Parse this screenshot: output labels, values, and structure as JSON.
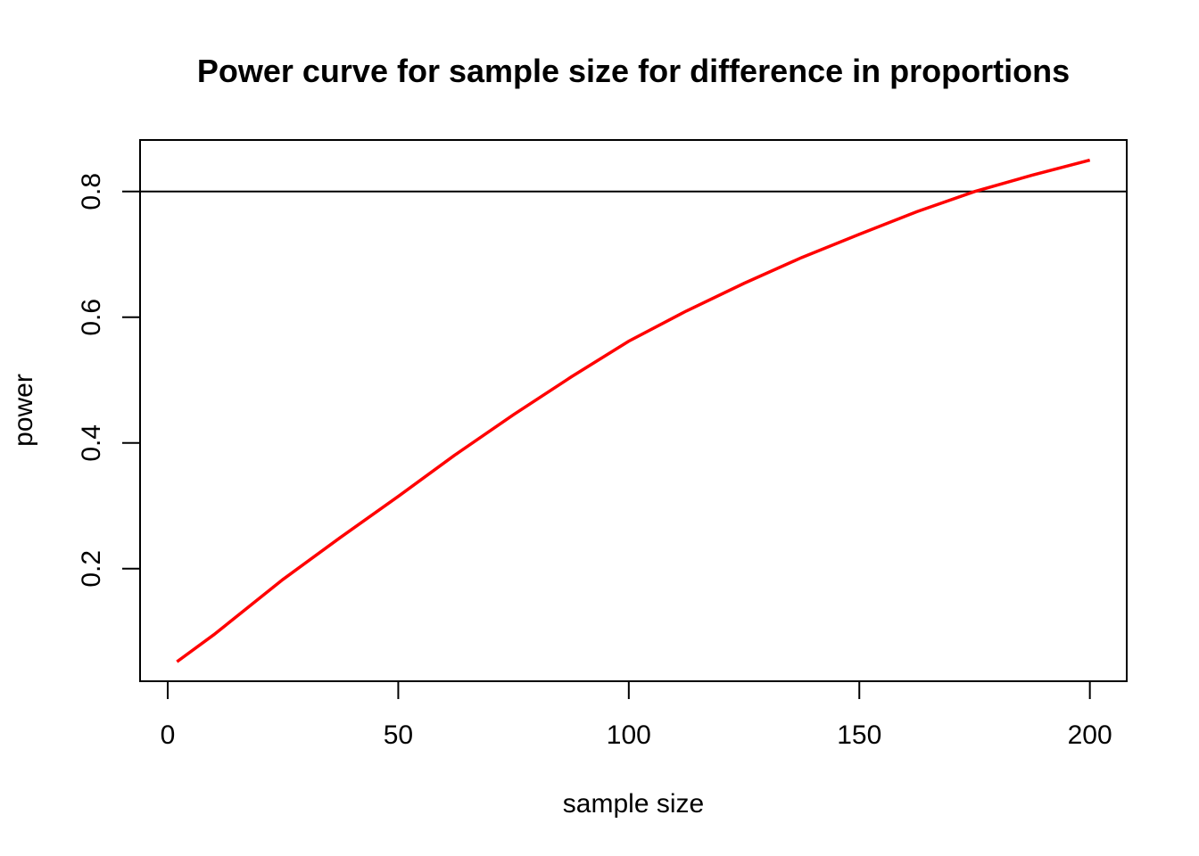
{
  "chart_data": {
    "type": "line",
    "title": "Power curve for sample size for difference in proportions",
    "xlabel": "sample size",
    "ylabel": "power",
    "xlim": [
      -6,
      208
    ],
    "ylim": [
      0.021,
      0.882
    ],
    "xticks": [
      0,
      50,
      100,
      150,
      200
    ],
    "xtick_labels": [
      "0",
      "50",
      "100",
      "150",
      "200"
    ],
    "yticks": [
      0.2,
      0.4,
      0.6,
      0.8
    ],
    "ytick_labels": [
      "0.2",
      "0.4",
      "0.6",
      "0.8"
    ],
    "grid": false,
    "reference_line": {
      "y": 0.8,
      "color": "#000000"
    },
    "series": [
      {
        "name": "power",
        "color": "#ff0000",
        "x": [
          2,
          10,
          25,
          37.5,
          50,
          62.5,
          75,
          87.5,
          100,
          112.5,
          125,
          137.5,
          150,
          162.5,
          175,
          187.5,
          200
        ],
        "y": [
          0.052,
          0.095,
          0.183,
          0.25,
          0.315,
          0.382,
          0.445,
          0.505,
          0.562,
          0.61,
          0.654,
          0.695,
          0.732,
          0.768,
          0.8,
          0.826,
          0.85
        ]
      }
    ]
  }
}
